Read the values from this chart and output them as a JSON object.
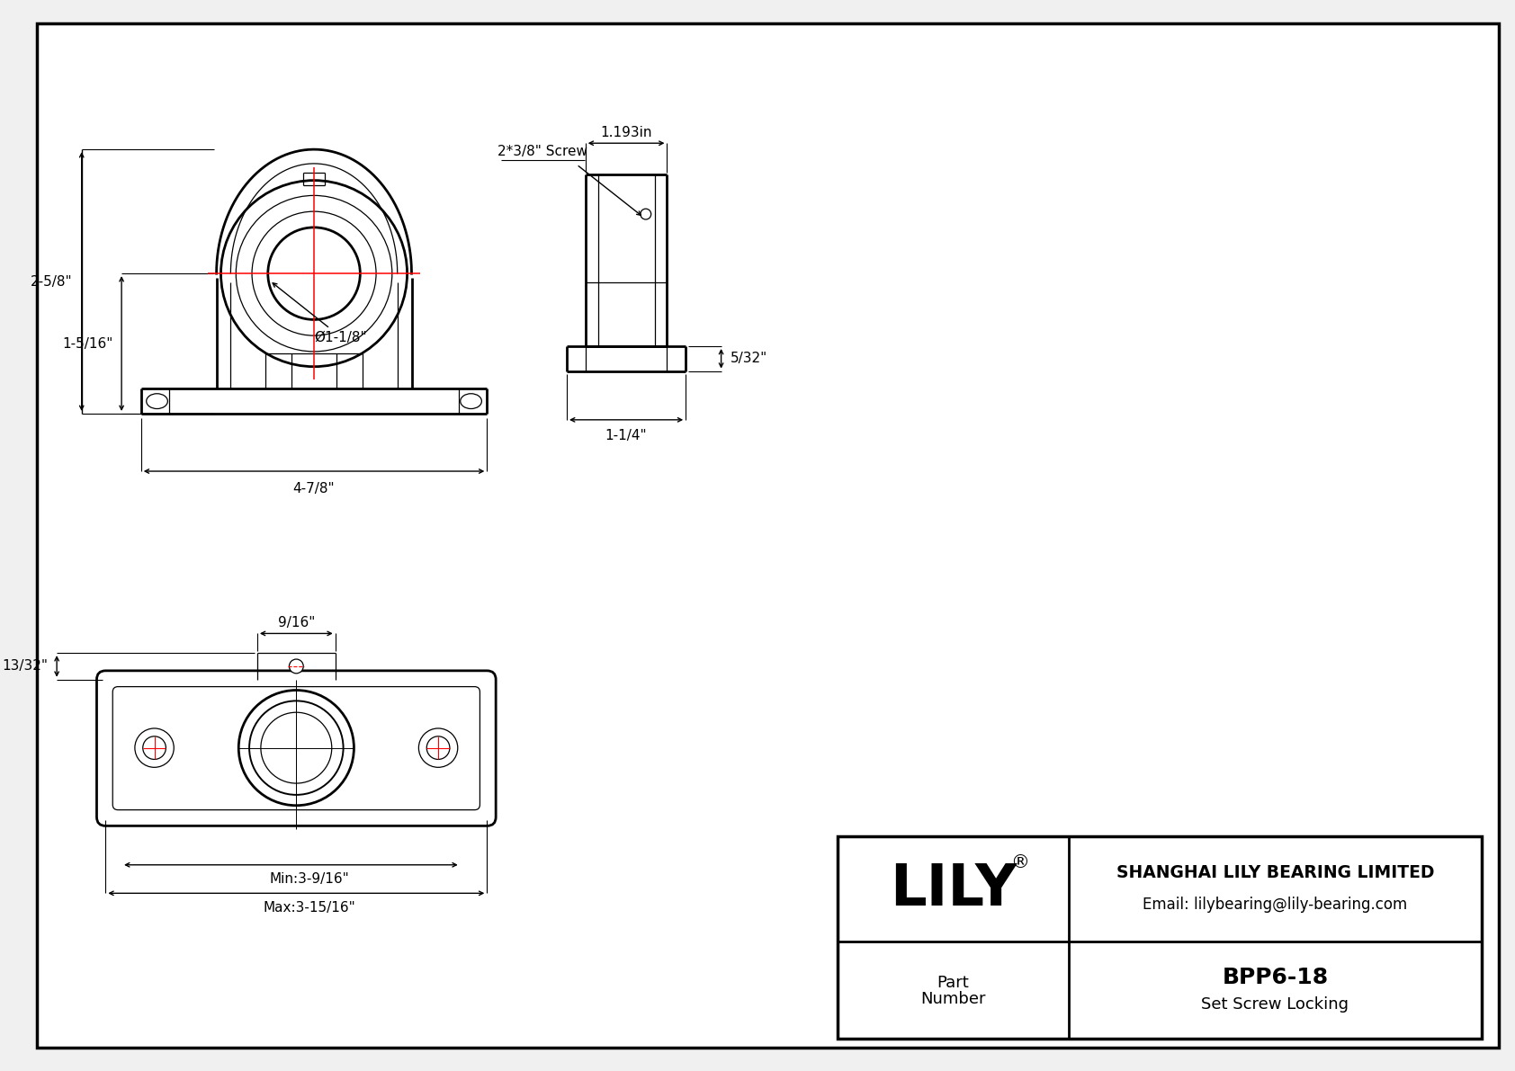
{
  "bg_color": "#f0f0f0",
  "white": "#ffffff",
  "black": "#000000",
  "red": "#ff0000",
  "company": "SHANGHAI LILY BEARING LIMITED",
  "email": "Email: lilybearing@lily-bearing.com",
  "brand": "LILY",
  "reg": "®",
  "part_label_1": "Part",
  "part_label_2": "Number",
  "part_number": "BPP6-18",
  "part_type": "Set Screw Locking",
  "dim_2_5_8": "2-5/8\"",
  "dim_1_5_16": "1-5/16\"",
  "dim_4_7_8": "4-7/8\"",
  "dim_dia_1_1_8": "Ø1-1/8\"",
  "dim_5_32": "5/32\"",
  "dim_1_193": "1.193in",
  "dim_screw": "2*3/8\" Screw",
  "dim_1_1_4": "1-1/4\"",
  "dim_9_16": "9/16\"",
  "dim_13_32": "13/32\"",
  "dim_min": "Min:3-9/16\"",
  "dim_max": "Max:3-15/16\""
}
